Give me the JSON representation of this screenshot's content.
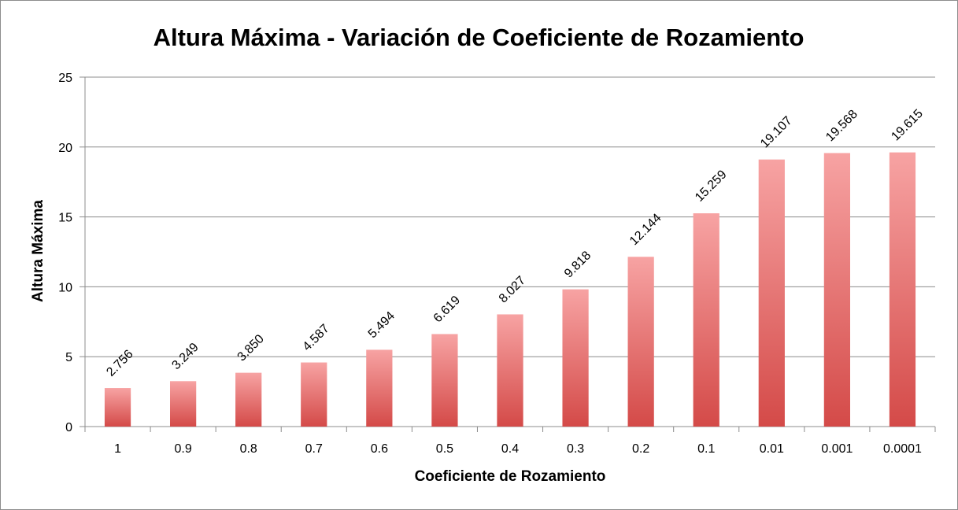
{
  "chart_data": {
    "type": "bar",
    "title": "Altura Máxima - Variación de Coeficiente de Rozamiento",
    "xlabel": "Coeficiente de Rozamiento",
    "ylabel": "Altura Máxima",
    "categories": [
      "1",
      "0.9",
      "0.8",
      "0.7",
      "0.6",
      "0.5",
      "0.4",
      "0.3",
      "0.2",
      "0.1",
      "0.01",
      "0.001",
      "0.0001"
    ],
    "values": [
      2.756,
      3.249,
      3.85,
      4.587,
      5.494,
      6.619,
      8.027,
      9.818,
      12.144,
      15.259,
      19.107,
      19.568,
      19.615
    ],
    "data_labels": [
      "2.756",
      "3.249",
      "3.850",
      "4.587",
      "5.494",
      "6.619",
      "8.027",
      "9.818",
      "12.144",
      "15.259",
      "19.107",
      "19.568",
      "19.615"
    ],
    "ylim": [
      0,
      25
    ],
    "yticks": [
      0,
      5,
      10,
      15,
      20,
      25
    ],
    "ytick_labels": [
      "0",
      "5",
      "10",
      "15",
      "20",
      "25"
    ],
    "grid": true,
    "legend": "none",
    "colors": {
      "bar_top": "#f7a3a3",
      "bar_bottom": "#d44a48",
      "grid": "#8c8c8c",
      "axis": "#8c8c8c"
    }
  }
}
